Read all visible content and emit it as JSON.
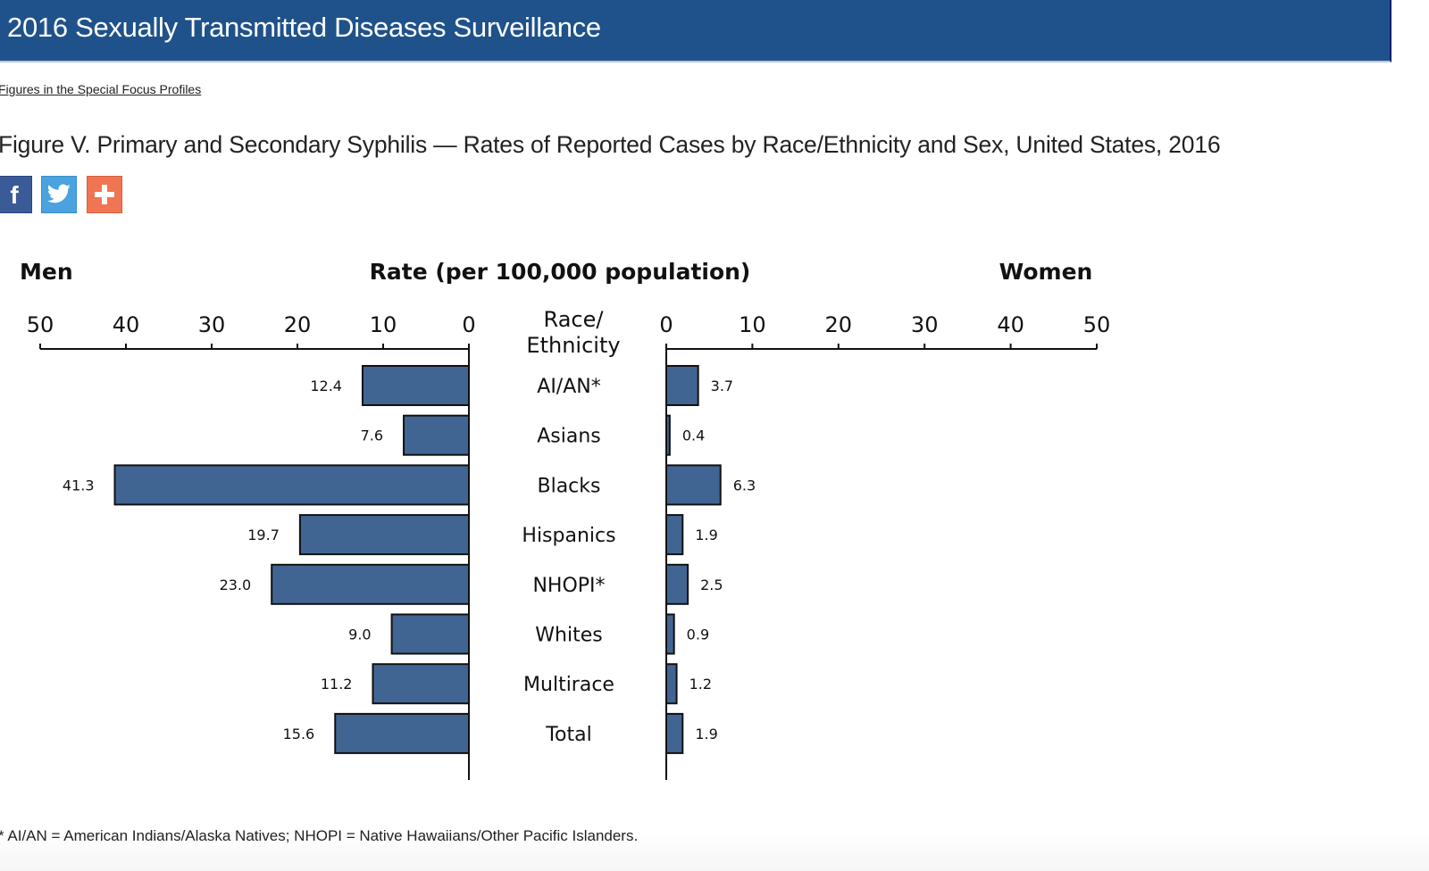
{
  "header": {
    "title": "2016 Sexually Transmitted Diseases Surveillance"
  },
  "breadcrumb": {
    "label": "Figures in the Special Focus Profiles"
  },
  "figure": {
    "title": "Figure V. Primary and Secondary Syphilis — Rates of Reported Cases by Race/Ethnicity and Sex, United States, 2016"
  },
  "share": [
    {
      "name": "facebook",
      "glyph": "f",
      "color": "#3b5a98"
    },
    {
      "name": "twitter",
      "glyph": "🐦",
      "color": "#4aa3df"
    },
    {
      "name": "add-this",
      "glyph": "+",
      "color": "#f07552"
    }
  ],
  "footnote": "* AI/AN = American Indians/Alaska Natives; NHOPI = Native Hawaiians/Other Pacific Islanders.",
  "chart_data": {
    "type": "bar",
    "orientation": "horizontal-butterfly",
    "title": "Rate (per 100,000 population)",
    "left_panel_label": "Men",
    "right_panel_label": "Women",
    "category_header_line1": "Race/",
    "category_header_line2": "Ethnicity",
    "categories": [
      "AI/AN*",
      "Asians",
      "Blacks",
      "Hispanics",
      "NHOPI*",
      "Whites",
      "Multirace",
      "Total"
    ],
    "series": [
      {
        "name": "Men",
        "values": [
          12.4,
          7.6,
          41.3,
          19.7,
          23.0,
          9.0,
          11.2,
          15.6
        ],
        "labels": [
          "12.4",
          "7.6",
          "41.3",
          "19.7",
          "23.0",
          "9.0",
          "11.2",
          "15.6"
        ]
      },
      {
        "name": "Women",
        "values": [
          3.7,
          0.4,
          6.3,
          1.9,
          2.5,
          0.9,
          1.2,
          1.9
        ],
        "labels": [
          "3.7",
          "0.4",
          "6.3",
          "1.9",
          "2.5",
          "0.9",
          "1.2",
          "1.9"
        ]
      }
    ],
    "xlim": [
      0,
      50
    ],
    "ticks": [
      0,
      10,
      20,
      30,
      40,
      50
    ],
    "tick_labels": [
      "0",
      "10",
      "20",
      "30",
      "40",
      "50"
    ],
    "bar_color": "#416593",
    "grid": false,
    "legend": "none"
  }
}
